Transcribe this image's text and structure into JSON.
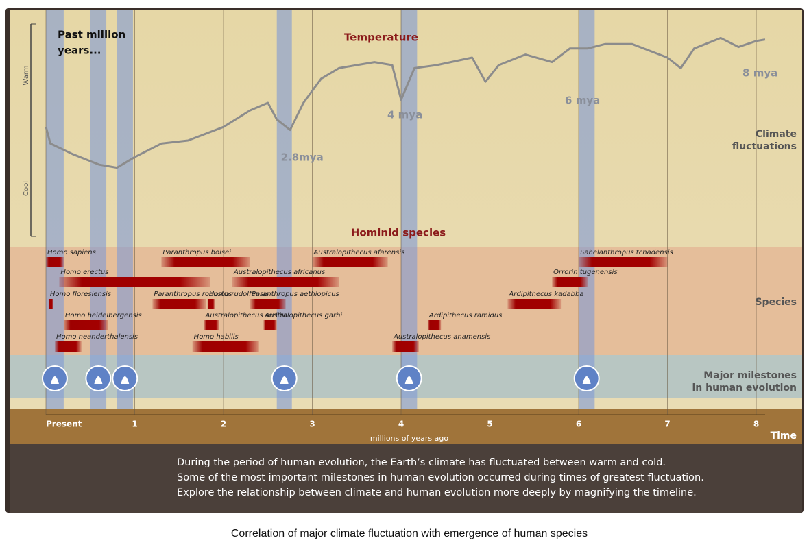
{
  "chart_data": {
    "type": "timeline",
    "temperature_title": "Temperature",
    "warm_label": "Warm",
    "cool_label": "Cool",
    "past_label": [
      "Past million",
      "years..."
    ],
    "period_labels": [
      {
        "value": 2.8,
        "label": "2.8mya"
      },
      {
        "value": 4,
        "label": "4 mya"
      },
      {
        "value": 6,
        "label": "6 mya"
      },
      {
        "value": 8,
        "label": "8 mya"
      }
    ],
    "climate_label": [
      "Climate",
      "fluctuations"
    ],
    "species_title": "Hominid species",
    "species_label": "Species",
    "milestones_label": [
      "Major milestones",
      "in human evolution"
    ],
    "x": [
      0,
      0.05,
      0.3,
      0.6,
      0.8,
      1.0,
      1.3,
      1.6,
      2.0,
      2.3,
      2.5,
      2.6,
      2.75,
      2.9,
      3.1,
      3.3,
      3.5,
      3.7,
      3.9,
      4.0,
      4.15,
      4.4,
      4.8,
      4.95,
      5.1,
      5.4,
      5.7,
      5.9,
      6.1,
      6.3,
      6.6,
      7.0,
      7.15,
      7.3,
      7.6,
      7.8,
      8.0,
      8.1
    ],
    "temperature": [
      34,
      23,
      16,
      9,
      7,
      14,
      23,
      25,
      34,
      45,
      50,
      39,
      32,
      50,
      66,
      73,
      75,
      77,
      75,
      52,
      73,
      75,
      80,
      64,
      75,
      82,
      77,
      86,
      86,
      89,
      89,
      80,
      73,
      86,
      93,
      87,
      91,
      92
    ],
    "ylim": [
      0,
      100
    ],
    "xlim": [
      0,
      8.1
    ],
    "xticks": [
      {
        "value": 0,
        "label": "Present"
      },
      1,
      2,
      3,
      4,
      5,
      6,
      7,
      8
    ],
    "xlabel": "millions of years ago",
    "time_label": "Time",
    "fluctuation_periods": [
      [
        0,
        0.2
      ],
      [
        0.5,
        0.68
      ],
      [
        0.8,
        0.98
      ],
      [
        2.6,
        2.77
      ],
      [
        4.0,
        4.18
      ],
      [
        6.0,
        6.18
      ]
    ],
    "species": [
      {
        "name": "Homo sapiens",
        "start": 0,
        "end": 0.2
      },
      {
        "name": "Homo erectus",
        "start": 0.15,
        "end": 1.85
      },
      {
        "name": "Homo floresiensis",
        "start": 0.03,
        "end": 0.08
      },
      {
        "name": "Homo heidelbergensis",
        "start": 0.2,
        "end": 0.7
      },
      {
        "name": "Homo neanderthalensis",
        "start": 0.1,
        "end": 0.4
      },
      {
        "name": "Paranthropus boisei",
        "start": 1.3,
        "end": 2.3
      },
      {
        "name": "Paranthropus robustus",
        "start": 1.2,
        "end": 1.8
      },
      {
        "name": "Homo rudolfensis",
        "start": 1.82,
        "end": 1.9
      },
      {
        "name": "Australopithecus sediba",
        "start": 1.78,
        "end": 1.95
      },
      {
        "name": "Homo habilis",
        "start": 1.65,
        "end": 2.4
      },
      {
        "name": "Australopithecus africanus",
        "start": 2.1,
        "end": 3.3
      },
      {
        "name": "Paranthropus aethiopicus",
        "start": 2.3,
        "end": 2.7
      },
      {
        "name": "Australopithecus garhi",
        "start": 2.45,
        "end": 2.6
      },
      {
        "name": "Australopithecus afarensis",
        "start": 3.0,
        "end": 3.85
      },
      {
        "name": "Australopithecus anamensis",
        "start": 3.9,
        "end": 4.2
      },
      {
        "name": "Ardipithecus ramidus",
        "start": 4.3,
        "end": 4.45
      },
      {
        "name": "Ardipithecus kadabba",
        "start": 5.2,
        "end": 5.8
      },
      {
        "name": "Orrorin tugenensis",
        "start": 5.7,
        "end": 6.1
      },
      {
        "name": "Sahelanthropus tchadensis",
        "start": 6.0,
        "end": 7.0
      }
    ],
    "description": [
      "During the period of human evolution, the Earth’s climate has fluctuated between warm and cold.",
      "Some of the most important milestones in human evolution occurred during times of greatest fluctuation.",
      "Explore the relationship between climate and human evolution more deeply by magnifying the timeline."
    ]
  },
  "caption": "Correlation of major climate fluctuation with emergence of human species"
}
